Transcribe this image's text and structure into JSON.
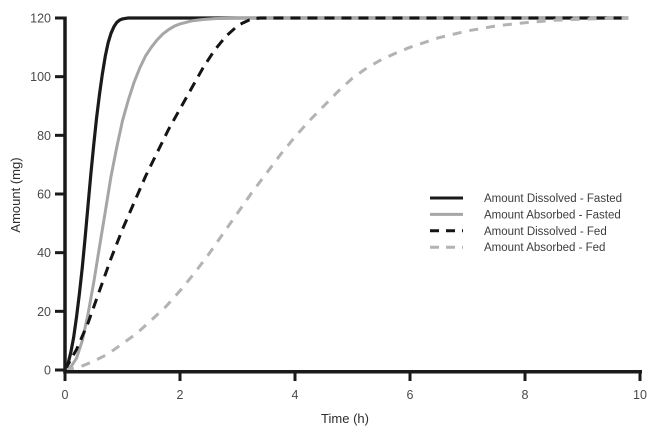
{
  "figure": {
    "background": "#ffffff",
    "axis_color": "#1a1a1a",
    "tick_label_color": "#4a4a4a",
    "axis_title_color": "#2e2e2e",
    "legend_text_color": "#3d3d3d"
  },
  "chart_data": {
    "type": "line",
    "title": "",
    "xlabel": "Time (h)",
    "ylabel": "Amount (mg)",
    "xlim": [
      0,
      10
    ],
    "ylim": [
      0,
      120
    ],
    "x_ticks": [
      0,
      2,
      4,
      6,
      8,
      10
    ],
    "y_ticks": [
      0,
      20,
      40,
      60,
      80,
      100,
      120
    ],
    "grid": false,
    "legend_position": "right-middle",
    "series": [
      {
        "name": "Amount Dissolved - Fasted",
        "color": "#1a1a1a",
        "style": "solid",
        "points": [
          [
            0,
            0
          ],
          [
            0.05,
            2
          ],
          [
            0.1,
            6
          ],
          [
            0.15,
            11
          ],
          [
            0.2,
            18
          ],
          [
            0.25,
            26
          ],
          [
            0.3,
            35
          ],
          [
            0.35,
            45
          ],
          [
            0.4,
            56
          ],
          [
            0.45,
            67
          ],
          [
            0.5,
            77
          ],
          [
            0.55,
            86
          ],
          [
            0.6,
            94
          ],
          [
            0.65,
            101
          ],
          [
            0.7,
            107
          ],
          [
            0.75,
            111.5
          ],
          [
            0.8,
            114.8
          ],
          [
            0.85,
            117
          ],
          [
            0.9,
            118.5
          ],
          [
            0.95,
            119.3
          ],
          [
            1.0,
            119.7
          ],
          [
            1.1,
            120
          ],
          [
            1.5,
            120
          ],
          [
            2,
            120
          ],
          [
            3,
            120
          ],
          [
            4,
            120
          ],
          [
            5,
            120
          ],
          [
            6,
            120
          ],
          [
            7,
            120
          ],
          [
            8,
            120
          ],
          [
            9,
            120
          ],
          [
            9.8,
            120
          ]
        ]
      },
      {
        "name": "Amount Absorbed - Fasted",
        "color": "#a6a6a6",
        "style": "solid",
        "points": [
          [
            0,
            0
          ],
          [
            0.1,
            1
          ],
          [
            0.2,
            4
          ],
          [
            0.3,
            10
          ],
          [
            0.4,
            19
          ],
          [
            0.5,
            30
          ],
          [
            0.6,
            42
          ],
          [
            0.7,
            54
          ],
          [
            0.8,
            66
          ],
          [
            0.9,
            76
          ],
          [
            1.0,
            85
          ],
          [
            1.1,
            92
          ],
          [
            1.2,
            98
          ],
          [
            1.3,
            103
          ],
          [
            1.4,
            107
          ],
          [
            1.5,
            110
          ],
          [
            1.6,
            112.5
          ],
          [
            1.7,
            114.5
          ],
          [
            1.8,
            116
          ],
          [
            1.9,
            117.2
          ],
          [
            2.0,
            118
          ],
          [
            2.2,
            119
          ],
          [
            2.4,
            119.5
          ],
          [
            2.6,
            119.8
          ],
          [
            2.8,
            119.9
          ],
          [
            3.0,
            120
          ],
          [
            3.3,
            120
          ],
          [
            4,
            120
          ],
          [
            5,
            120
          ],
          [
            6,
            120
          ],
          [
            7,
            120
          ],
          [
            8,
            120
          ],
          [
            9,
            120
          ],
          [
            9.8,
            120
          ]
        ]
      },
      {
        "name": "Amount Dissolved - Fed",
        "color": "#141414",
        "style": "dashed",
        "points": [
          [
            0,
            0
          ],
          [
            0.2,
            7
          ],
          [
            0.4,
            16
          ],
          [
            0.6,
            27
          ],
          [
            0.8,
            38
          ],
          [
            1.0,
            48
          ],
          [
            1.2,
            57
          ],
          [
            1.4,
            66
          ],
          [
            1.6,
            74
          ],
          [
            1.8,
            82
          ],
          [
            2.0,
            89
          ],
          [
            2.2,
            96
          ],
          [
            2.4,
            103
          ],
          [
            2.6,
            109
          ],
          [
            2.8,
            113.8
          ],
          [
            3.0,
            117.3
          ],
          [
            3.1,
            118.4
          ],
          [
            3.2,
            119.3
          ],
          [
            3.3,
            119.8
          ],
          [
            3.4,
            120
          ],
          [
            4,
            120
          ],
          [
            5,
            120
          ],
          [
            6,
            120
          ],
          [
            7,
            120
          ],
          [
            8,
            120
          ],
          [
            9,
            120
          ],
          [
            9.8,
            120
          ]
        ]
      },
      {
        "name": "Amount Absorbed - Fed",
        "color": "#b3b3b3",
        "style": "dashed",
        "points": [
          [
            0,
            0
          ],
          [
            0.25,
            1
          ],
          [
            0.5,
            3
          ],
          [
            0.75,
            5.5
          ],
          [
            1.0,
            9
          ],
          [
            1.25,
            12.5
          ],
          [
            1.5,
            17
          ],
          [
            1.75,
            21.5
          ],
          [
            2.0,
            27
          ],
          [
            2.25,
            33
          ],
          [
            2.5,
            39.5
          ],
          [
            2.75,
            46.5
          ],
          [
            3.0,
            53.5
          ],
          [
            3.25,
            60.5
          ],
          [
            3.5,
            67
          ],
          [
            3.75,
            73.5
          ],
          [
            4.0,
            79.5
          ],
          [
            4.25,
            85
          ],
          [
            4.5,
            90
          ],
          [
            4.75,
            95
          ],
          [
            5.0,
            99.5
          ],
          [
            5.25,
            103
          ],
          [
            5.5,
            105.8
          ],
          [
            5.75,
            108
          ],
          [
            6.0,
            110
          ],
          [
            6.5,
            113.3
          ],
          [
            7.0,
            115.6
          ],
          [
            7.5,
            117.3
          ],
          [
            8.0,
            118.4
          ],
          [
            8.5,
            119.2
          ],
          [
            9.0,
            119.6
          ],
          [
            9.5,
            119.9
          ],
          [
            9.8,
            120
          ]
        ]
      }
    ]
  }
}
